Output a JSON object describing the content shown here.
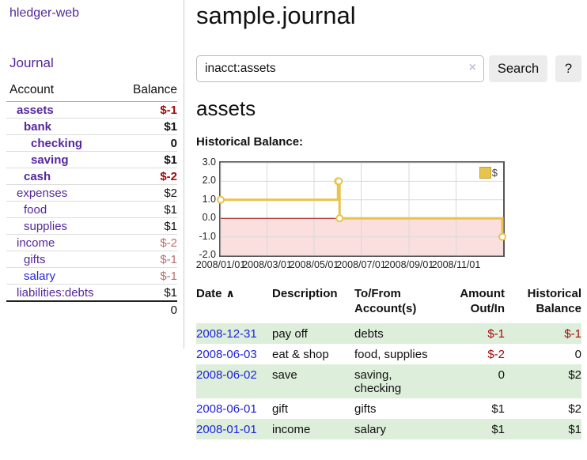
{
  "app": {
    "title": "hledger-web",
    "nav_journal": "Journal"
  },
  "colors": {
    "purple_link": "#55279b",
    "blue_link": "#2424d9",
    "date_link": "#2222d9",
    "negative_strong": "#a40909",
    "negative_soft": "#bd6c6c",
    "row_stripe_green": "#ddeeda",
    "chart_line_gold": "#e8c34e",
    "chart_negative_fill": "#fbdede",
    "chart_zero_line": "#a01010"
  },
  "sidebar": {
    "header": {
      "account": "Account",
      "balance": "Balance"
    },
    "accounts": [
      {
        "name": "assets",
        "level": 1,
        "bold": true,
        "color": "purple",
        "balance": "$-1",
        "balance_class": "neg-strong"
      },
      {
        "name": "bank",
        "level": 2,
        "bold": true,
        "color": "purple",
        "balance": "$1",
        "balance_class": ""
      },
      {
        "name": "checking",
        "level": 3,
        "bold": true,
        "color": "purple",
        "balance": "0",
        "balance_class": ""
      },
      {
        "name": "saving",
        "level": 3,
        "bold": true,
        "color": "purple",
        "balance": "$1",
        "balance_class": ""
      },
      {
        "name": "cash",
        "level": 2,
        "bold": true,
        "color": "purple",
        "balance": "$-2",
        "balance_class": "neg-strong"
      },
      {
        "name": "expenses",
        "level": 1,
        "bold": false,
        "color": "purple",
        "balance": "$2",
        "balance_class": ""
      },
      {
        "name": "food",
        "level": 2,
        "bold": false,
        "color": "purple",
        "balance": "$1",
        "balance_class": ""
      },
      {
        "name": "supplies",
        "level": 2,
        "bold": false,
        "color": "purple",
        "balance": "$1",
        "balance_class": ""
      },
      {
        "name": "income",
        "level": 1,
        "bold": false,
        "color": "purple",
        "balance": "$-2",
        "balance_class": "neg-soft"
      },
      {
        "name": "gifts",
        "level": 2,
        "bold": false,
        "color": "purple",
        "balance": "$-1",
        "balance_class": "neg-soft"
      },
      {
        "name": "salary",
        "level": 2,
        "bold": false,
        "color": "blue",
        "balance": "$-1",
        "balance_class": "neg-soft"
      },
      {
        "name": "liabilities:debts",
        "level": 1,
        "bold": false,
        "color": "purple",
        "balance": "$1",
        "balance_class": ""
      }
    ],
    "total": "0"
  },
  "main": {
    "title": "sample.journal",
    "search": {
      "value": "inacct:assets",
      "clear_icon": "×",
      "button": "Search",
      "help_button": "?"
    },
    "section_title": "assets",
    "chart_label": "Historical Balance:",
    "table": {
      "headers": {
        "date": "Date",
        "sort_icon": "∧",
        "description": "Description",
        "accounts": "To/From Account(s)",
        "amount": "Amount Out/In",
        "balance": "Historical Balance"
      },
      "transactions": [
        {
          "date": "2008-12-31",
          "description": "pay off",
          "accounts": "debts",
          "amount": "$-1",
          "amount_class": "neg",
          "balance": "$-1",
          "balance_class": "neg"
        },
        {
          "date": "2008-06-03",
          "description": "eat & shop",
          "accounts": "food, supplies",
          "amount": "$-2",
          "amount_class": "neg",
          "balance": "0",
          "balance_class": ""
        },
        {
          "date": "2008-06-02",
          "description": "save",
          "accounts": "saving, checking",
          "amount": "0",
          "amount_class": "",
          "balance": "$2",
          "balance_class": ""
        },
        {
          "date": "2008-06-01",
          "description": "gift",
          "accounts": "gifts",
          "amount": "$1",
          "amount_class": "",
          "balance": "$2",
          "balance_class": ""
        },
        {
          "date": "2008-01-01",
          "description": "income",
          "accounts": "salary",
          "amount": "$1",
          "amount_class": "",
          "balance": "$1",
          "balance_class": ""
        }
      ]
    }
  },
  "chart_data": {
    "type": "line",
    "step": true,
    "title": "Historical Balance",
    "series": [
      {
        "name": "$",
        "points": [
          [
            "2008-01-01",
            1
          ],
          [
            "2008-06-01",
            2
          ],
          [
            "2008-06-02",
            2
          ],
          [
            "2008-06-03",
            0
          ],
          [
            "2008-12-31",
            -1
          ]
        ]
      }
    ],
    "x_range": [
      "2008-01-01",
      "2009-01-01"
    ],
    "ylim": [
      -2,
      3
    ],
    "yticks": [
      "3.0",
      "2.0",
      "1.0",
      "0.0",
      "-1.0",
      "-2.0"
    ],
    "xticks": [
      "2008/01/01",
      "2008/03/01",
      "2008/05/01",
      "2008/07/01",
      "2008/09/01",
      "2008/11/01"
    ],
    "grid": true,
    "legend_position": "top-right"
  }
}
